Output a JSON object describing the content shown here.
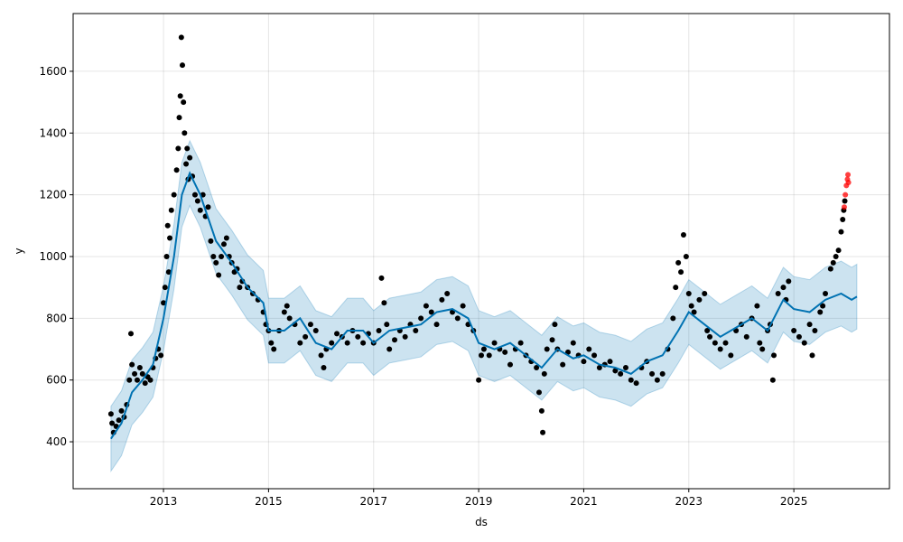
{
  "chart_data": {
    "type": "scatter",
    "title": "",
    "xlabel": "ds",
    "ylabel": "y",
    "xlim": [
      2011.28,
      2026.82
    ],
    "ylim": [
      248,
      1787
    ],
    "grid": true,
    "x_ticks": [
      {
        "v": 2013,
        "label": "2013"
      },
      {
        "v": 2015,
        "label": "2015"
      },
      {
        "v": 2017,
        "label": "2017"
      },
      {
        "v": 2019,
        "label": "2019"
      },
      {
        "v": 2021,
        "label": "2021"
      },
      {
        "v": 2023,
        "label": "2023"
      },
      {
        "v": 2025,
        "label": "2025"
      }
    ],
    "y_ticks": [
      {
        "v": 400,
        "label": "400"
      },
      {
        "v": 600,
        "label": "600"
      },
      {
        "v": 800,
        "label": "800"
      },
      {
        "v": 1000,
        "label": "1000"
      },
      {
        "v": 1200,
        "label": "1200"
      },
      {
        "v": 1400,
        "label": "1400"
      },
      {
        "v": 1600,
        "label": "1600"
      }
    ],
    "colors": {
      "forecast": "#0072B2",
      "band": "#0072B2",
      "observed": "#000000",
      "highlight": "#ff0000"
    },
    "interval_halfwidth": 105,
    "forecast": [
      [
        2012.0,
        410
      ],
      [
        2012.2,
        460
      ],
      [
        2012.4,
        560
      ],
      [
        2012.6,
        600
      ],
      [
        2012.8,
        650
      ],
      [
        2013.0,
        800
      ],
      [
        2013.2,
        1000
      ],
      [
        2013.35,
        1200
      ],
      [
        2013.5,
        1270
      ],
      [
        2013.7,
        1200
      ],
      [
        2014.0,
        1050
      ],
      [
        2014.3,
        980
      ],
      [
        2014.6,
        900
      ],
      [
        2014.9,
        850
      ],
      [
        2015.0,
        760
      ],
      [
        2015.3,
        760
      ],
      [
        2015.6,
        800
      ],
      [
        2015.9,
        720
      ],
      [
        2016.2,
        700
      ],
      [
        2016.5,
        760
      ],
      [
        2016.8,
        760
      ],
      [
        2017.0,
        720
      ],
      [
        2017.3,
        760
      ],
      [
        2017.6,
        770
      ],
      [
        2017.9,
        780
      ],
      [
        2018.2,
        820
      ],
      [
        2018.5,
        830
      ],
      [
        2018.8,
        800
      ],
      [
        2019.0,
        720
      ],
      [
        2019.3,
        700
      ],
      [
        2019.6,
        720
      ],
      [
        2019.9,
        680
      ],
      [
        2020.2,
        640
      ],
      [
        2020.5,
        700
      ],
      [
        2020.8,
        670
      ],
      [
        2021.0,
        680
      ],
      [
        2021.3,
        650
      ],
      [
        2021.6,
        640
      ],
      [
        2021.9,
        620
      ],
      [
        2022.2,
        660
      ],
      [
        2022.5,
        680
      ],
      [
        2022.8,
        760
      ],
      [
        2023.0,
        820
      ],
      [
        2023.3,
        780
      ],
      [
        2023.6,
        740
      ],
      [
        2023.9,
        770
      ],
      [
        2024.2,
        800
      ],
      [
        2024.5,
        760
      ],
      [
        2024.8,
        860
      ],
      [
        2025.0,
        830
      ],
      [
        2025.3,
        820
      ],
      [
        2025.6,
        860
      ],
      [
        2025.9,
        880
      ],
      [
        2026.1,
        860
      ],
      [
        2026.2,
        870
      ]
    ],
    "observed": [
      [
        2012.0,
        490
      ],
      [
        2012.02,
        460
      ],
      [
        2012.05,
        430
      ],
      [
        2012.1,
        450
      ],
      [
        2012.15,
        470
      ],
      [
        2012.2,
        500
      ],
      [
        2012.25,
        480
      ],
      [
        2012.3,
        520
      ],
      [
        2012.35,
        600
      ],
      [
        2012.38,
        750
      ],
      [
        2012.4,
        650
      ],
      [
        2012.45,
        620
      ],
      [
        2012.5,
        600
      ],
      [
        2012.55,
        640
      ],
      [
        2012.6,
        620
      ],
      [
        2012.65,
        590
      ],
      [
        2012.7,
        610
      ],
      [
        2012.75,
        600
      ],
      [
        2012.8,
        640
      ],
      [
        2012.85,
        670
      ],
      [
        2012.9,
        700
      ],
      [
        2012.95,
        680
      ],
      [
        2013.0,
        850
      ],
      [
        2013.03,
        900
      ],
      [
        2013.06,
        1000
      ],
      [
        2013.08,
        1100
      ],
      [
        2013.1,
        950
      ],
      [
        2013.12,
        1060
      ],
      [
        2013.15,
        1150
      ],
      [
        2013.2,
        1200
      ],
      [
        2013.25,
        1280
      ],
      [
        2013.28,
        1350
      ],
      [
        2013.3,
        1450
      ],
      [
        2013.32,
        1520
      ],
      [
        2013.34,
        1710
      ],
      [
        2013.36,
        1620
      ],
      [
        2013.38,
        1500
      ],
      [
        2013.4,
        1400
      ],
      [
        2013.43,
        1300
      ],
      [
        2013.45,
        1350
      ],
      [
        2013.47,
        1250
      ],
      [
        2013.5,
        1320
      ],
      [
        2013.55,
        1260
      ],
      [
        2013.6,
        1200
      ],
      [
        2013.65,
        1180
      ],
      [
        2013.7,
        1150
      ],
      [
        2013.75,
        1200
      ],
      [
        2013.8,
        1130
      ],
      [
        2013.85,
        1160
      ],
      [
        2013.9,
        1050
      ],
      [
        2013.95,
        1000
      ],
      [
        2014.0,
        980
      ],
      [
        2014.05,
        940
      ],
      [
        2014.1,
        1000
      ],
      [
        2014.15,
        1040
      ],
      [
        2014.2,
        1060
      ],
      [
        2014.25,
        1000
      ],
      [
        2014.3,
        980
      ],
      [
        2014.35,
        950
      ],
      [
        2014.4,
        960
      ],
      [
        2014.45,
        900
      ],
      [
        2014.5,
        920
      ],
      [
        2014.6,
        900
      ],
      [
        2014.7,
        880
      ],
      [
        2014.8,
        860
      ],
      [
        2014.9,
        820
      ],
      [
        2014.95,
        780
      ],
      [
        2015.0,
        760
      ],
      [
        2015.05,
        720
      ],
      [
        2015.1,
        700
      ],
      [
        2015.2,
        760
      ],
      [
        2015.3,
        820
      ],
      [
        2015.35,
        840
      ],
      [
        2015.4,
        800
      ],
      [
        2015.5,
        780
      ],
      [
        2015.6,
        720
      ],
      [
        2015.7,
        740
      ],
      [
        2015.8,
        780
      ],
      [
        2015.9,
        760
      ],
      [
        2016.0,
        680
      ],
      [
        2016.05,
        640
      ],
      [
        2016.1,
        700
      ],
      [
        2016.2,
        720
      ],
      [
        2016.3,
        750
      ],
      [
        2016.4,
        740
      ],
      [
        2016.5,
        720
      ],
      [
        2016.6,
        760
      ],
      [
        2016.7,
        740
      ],
      [
        2016.8,
        720
      ],
      [
        2016.9,
        750
      ],
      [
        2017.0,
        720
      ],
      [
        2017.1,
        760
      ],
      [
        2017.15,
        930
      ],
      [
        2017.2,
        850
      ],
      [
        2017.25,
        780
      ],
      [
        2017.3,
        700
      ],
      [
        2017.4,
        730
      ],
      [
        2017.5,
        760
      ],
      [
        2017.6,
        740
      ],
      [
        2017.7,
        780
      ],
      [
        2017.8,
        760
      ],
      [
        2017.9,
        800
      ],
      [
        2018.0,
        840
      ],
      [
        2018.1,
        820
      ],
      [
        2018.2,
        780
      ],
      [
        2018.3,
        860
      ],
      [
        2018.4,
        880
      ],
      [
        2018.5,
        820
      ],
      [
        2018.6,
        800
      ],
      [
        2018.7,
        840
      ],
      [
        2018.8,
        780
      ],
      [
        2018.9,
        760
      ],
      [
        2019.0,
        600
      ],
      [
        2019.05,
        680
      ],
      [
        2019.1,
        700
      ],
      [
        2019.2,
        680
      ],
      [
        2019.3,
        720
      ],
      [
        2019.4,
        700
      ],
      [
        2019.5,
        690
      ],
      [
        2019.6,
        650
      ],
      [
        2019.7,
        700
      ],
      [
        2019.8,
        720
      ],
      [
        2019.9,
        680
      ],
      [
        2020.0,
        660
      ],
      [
        2020.1,
        640
      ],
      [
        2020.15,
        560
      ],
      [
        2020.2,
        500
      ],
      [
        2020.22,
        430
      ],
      [
        2020.25,
        620
      ],
      [
        2020.3,
        700
      ],
      [
        2020.4,
        730
      ],
      [
        2020.45,
        780
      ],
      [
        2020.5,
        700
      ],
      [
        2020.6,
        650
      ],
      [
        2020.7,
        690
      ],
      [
        2020.8,
        720
      ],
      [
        2020.9,
        680
      ],
      [
        2021.0,
        660
      ],
      [
        2021.1,
        700
      ],
      [
        2021.2,
        680
      ],
      [
        2021.3,
        640
      ],
      [
        2021.4,
        650
      ],
      [
        2021.5,
        660
      ],
      [
        2021.6,
        630
      ],
      [
        2021.7,
        620
      ],
      [
        2021.8,
        640
      ],
      [
        2021.9,
        600
      ],
      [
        2022.0,
        590
      ],
      [
        2022.1,
        640
      ],
      [
        2022.2,
        660
      ],
      [
        2022.3,
        620
      ],
      [
        2022.4,
        600
      ],
      [
        2022.5,
        620
      ],
      [
        2022.6,
        700
      ],
      [
        2022.7,
        800
      ],
      [
        2022.75,
        900
      ],
      [
        2022.8,
        980
      ],
      [
        2022.85,
        950
      ],
      [
        2022.9,
        1070
      ],
      [
        2022.95,
        1000
      ],
      [
        2023.0,
        880
      ],
      [
        2023.05,
        840
      ],
      [
        2023.1,
        820
      ],
      [
        2023.2,
        860
      ],
      [
        2023.3,
        880
      ],
      [
        2023.35,
        760
      ],
      [
        2023.4,
        740
      ],
      [
        2023.5,
        720
      ],
      [
        2023.6,
        700
      ],
      [
        2023.7,
        720
      ],
      [
        2023.8,
        680
      ],
      [
        2023.9,
        760
      ],
      [
        2024.0,
        780
      ],
      [
        2024.1,
        740
      ],
      [
        2024.2,
        800
      ],
      [
        2024.3,
        840
      ],
      [
        2024.35,
        720
      ],
      [
        2024.4,
        700
      ],
      [
        2024.5,
        760
      ],
      [
        2024.55,
        780
      ],
      [
        2024.6,
        600
      ],
      [
        2024.62,
        680
      ],
      [
        2024.7,
        880
      ],
      [
        2024.8,
        900
      ],
      [
        2024.85,
        860
      ],
      [
        2024.9,
        920
      ],
      [
        2025.0,
        760
      ],
      [
        2025.1,
        740
      ],
      [
        2025.2,
        720
      ],
      [
        2025.3,
        780
      ],
      [
        2025.35,
        680
      ],
      [
        2025.4,
        760
      ],
      [
        2025.5,
        820
      ],
      [
        2025.55,
        840
      ],
      [
        2025.6,
        880
      ],
      [
        2025.7,
        960
      ],
      [
        2025.75,
        980
      ],
      [
        2025.8,
        1000
      ],
      [
        2025.85,
        1020
      ],
      [
        2025.9,
        1080
      ],
      [
        2025.93,
        1120
      ],
      [
        2025.95,
        1150
      ],
      [
        2025.97,
        1180
      ]
    ],
    "highlighted": [
      [
        2025.96,
        1160
      ],
      [
        2025.98,
        1200
      ],
      [
        2026.0,
        1230
      ],
      [
        2026.02,
        1250
      ],
      [
        2026.03,
        1265
      ],
      [
        2026.04,
        1240
      ]
    ]
  }
}
